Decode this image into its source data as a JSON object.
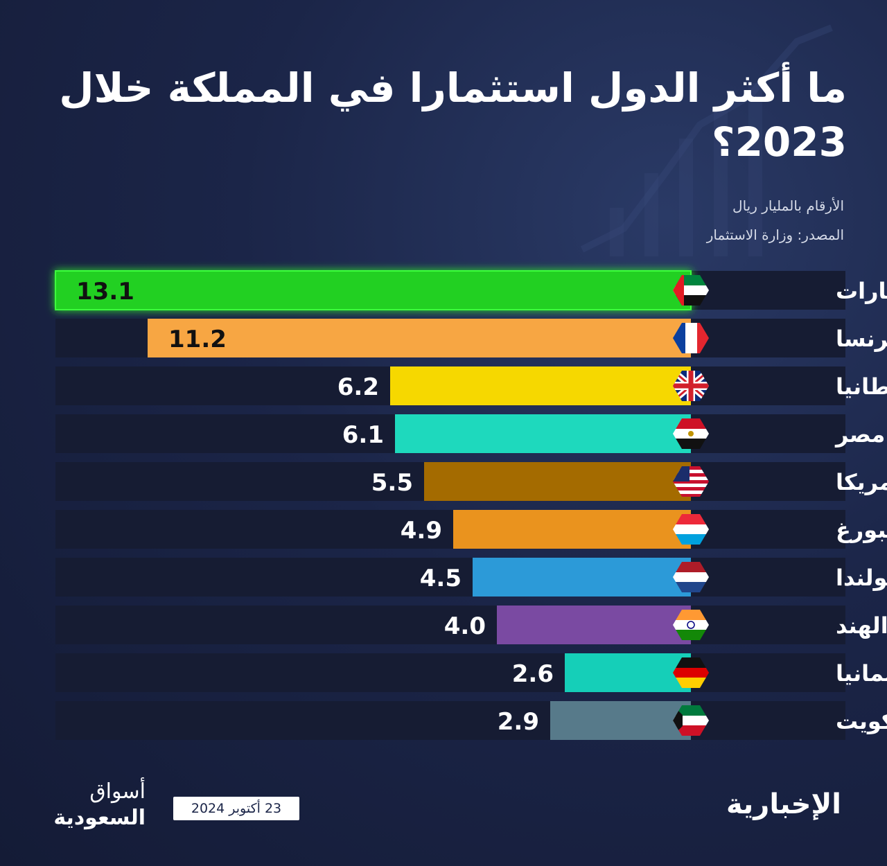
{
  "title": "ما أكثر الدول استثمارا في المملكة خلال 2023؟",
  "unit_note": "الأرقام بالمليار ريال",
  "source_note": "المصدر: وزارة الاستثمار",
  "footer": {
    "brand": "الإخبارية",
    "date": "23 أكتوبر 2024",
    "logo_line1": "أسواق",
    "logo_line2": "السعودية"
  },
  "colors": {
    "background": "#1b2548",
    "row_background": "#161c33",
    "highlight_glow": "#3cff3c"
  },
  "chart_data": {
    "type": "bar",
    "orientation": "horizontal",
    "categories": [
      "الإمارات",
      "فرنسا",
      "بريطانيا",
      "مصر",
      "إمريكا",
      "لوكسمبورغ",
      "هولندا",
      "الهند",
      "ألمانيا",
      "الكويت"
    ],
    "values": [
      13.1,
      11.2,
      6.2,
      6.1,
      5.5,
      4.9,
      4.5,
      4.0,
      2.6,
      2.9
    ],
    "value_labels": [
      "13.1",
      "11.2",
      "6.2",
      "6.1",
      "5.5",
      "4.9",
      "4.5",
      "4.0",
      "2.6",
      "2.9"
    ],
    "bar_colors": [
      "#22d022",
      "#f7a643",
      "#f6d800",
      "#1ed9bd",
      "#a46b00",
      "#ea931e",
      "#2c9ad8",
      "#7a4aa2",
      "#15cfb8",
      "#577a8a"
    ],
    "flags": [
      "uae-flag-icon",
      "france-flag-icon",
      "uk-flag-icon",
      "egypt-flag-icon",
      "usa-flag-icon",
      "luxembourg-flag-icon",
      "netherlands-flag-icon",
      "india-flag-icon",
      "germany-flag-icon",
      "kuwait-flag-icon"
    ],
    "highlight_index": 0,
    "xlim": [
      0,
      13.1
    ],
    "grid": false,
    "legend": "none"
  }
}
